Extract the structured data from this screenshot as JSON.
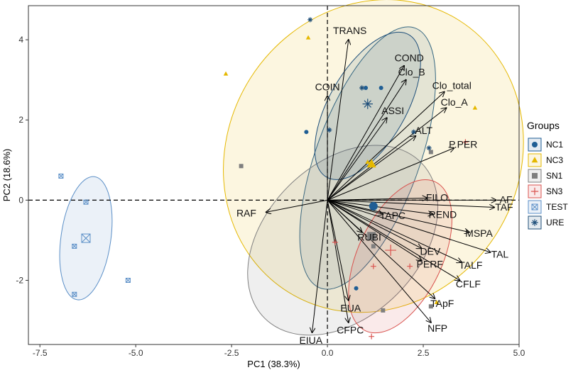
{
  "chart_data": {
    "type": "scatter",
    "subtype": "pca-biplot",
    "title": "",
    "xlabel": "PC1 (38.3%)",
    "ylabel": "PC2 (18.6%)",
    "xlim": [
      -7.8,
      5.0
    ],
    "ylim": [
      -3.6,
      4.85
    ],
    "x_ticks": [
      -7.5,
      -5.0,
      -2.5,
      0.0,
      2.5,
      5.0
    ],
    "x_tick_labels": [
      "-7.5",
      "-5.0",
      "-2.5",
      "0.0",
      "2.5",
      "5.0"
    ],
    "y_ticks": [
      -2,
      0,
      2,
      4
    ],
    "y_tick_labels": [
      "-2",
      "0",
      "2",
      "4"
    ],
    "grid": false,
    "reference_lines": {
      "x": 0,
      "y": 0,
      "style": "dashed"
    },
    "legend": {
      "title": "Groups",
      "position": "right",
      "entries": [
        {
          "name": "NC1",
          "color": "#1f5e94",
          "shape": "circle"
        },
        {
          "name": "NC3",
          "color": "#e5b800",
          "shape": "triangle"
        },
        {
          "name": "SN1",
          "color": "#7f7f7f",
          "shape": "square"
        },
        {
          "name": "SN3",
          "color": "#d9534f",
          "shape": "plus"
        },
        {
          "name": "TEST",
          "color": "#5b8fc7",
          "shape": "square-cross"
        },
        {
          "name": "URE",
          "color": "#1f4f7a",
          "shape": "asterisk"
        }
      ]
    },
    "variables": [
      {
        "name": "TRANS",
        "x": 0.55,
        "y": 4.0
      },
      {
        "name": "COND",
        "x": 2.0,
        "y": 3.35
      },
      {
        "name": "COIN",
        "x": 0.0,
        "y": 2.6
      },
      {
        "name": "Clo_B",
        "x": 2.05,
        "y": 3.0
      },
      {
        "name": "Clo_total",
        "x": 3.05,
        "y": 2.7
      },
      {
        "name": "ASSI",
        "x": 1.55,
        "y": 2.05
      },
      {
        "name": "Clo_A",
        "x": 3.1,
        "y": 2.3
      },
      {
        "name": "ALT",
        "x": 2.3,
        "y": 1.6
      },
      {
        "name": "P.PER",
        "x": 3.3,
        "y": 1.3
      },
      {
        "name": "FILO",
        "x": 2.6,
        "y": 0.05
      },
      {
        "name": "AF",
        "x": 4.4,
        "y": 0.0
      },
      {
        "name": "TAF",
        "x": 4.35,
        "y": -0.18
      },
      {
        "name": "REND",
        "x": 2.75,
        "y": -0.35
      },
      {
        "name": "TAPC",
        "x": 1.45,
        "y": -0.35
      },
      {
        "name": "MSPA",
        "x": 3.7,
        "y": -0.8
      },
      {
        "name": "RUBI",
        "x": 0.9,
        "y": -0.8
      },
      {
        "name": "TAL",
        "x": 4.25,
        "y": -1.3
      },
      {
        "name": "DEV",
        "x": 2.45,
        "y": -1.2
      },
      {
        "name": "TALF",
        "x": 3.5,
        "y": -1.55
      },
      {
        "name": "PERF",
        "x": 2.45,
        "y": -1.5
      },
      {
        "name": "CFLF",
        "x": 3.45,
        "y": -2.0
      },
      {
        "name": "TApF",
        "x": 2.8,
        "y": -2.45
      },
      {
        "name": "EUA",
        "x": 0.55,
        "y": -2.5
      },
      {
        "name": "NFP",
        "x": 2.7,
        "y": -3.05
      },
      {
        "name": "CFPC",
        "x": 0.55,
        "y": -3.05
      },
      {
        "name": "EIUA",
        "x": -0.4,
        "y": -3.3
      },
      {
        "name": "RAF",
        "x": -1.6,
        "y": -0.3
      }
    ],
    "groups": [
      {
        "name": "NC1",
        "points": [
          [
            -0.55,
            1.7
          ],
          [
            1.0,
            2.8
          ],
          [
            1.4,
            2.8
          ],
          [
            1.15,
            0.9
          ],
          [
            0.75,
            -2.2
          ]
        ],
        "centroid": [
          1.2,
          -0.15
        ],
        "ellipse": {
          "cx": 1.05,
          "cy": 1.05,
          "rx": 1.35,
          "ry": 3.45,
          "angle_deg": 20
        }
      },
      {
        "name": "NC3",
        "points": [
          [
            -2.65,
            3.15
          ],
          [
            -0.5,
            4.05
          ],
          [
            1.05,
            0.95
          ],
          [
            3.85,
            2.3
          ],
          [
            2.85,
            -2.55
          ]
        ],
        "centroid": [
          1.15,
          0.9
        ],
        "ellipse": {
          "cx": 1.2,
          "cy": 1.1,
          "rx": 3.8,
          "ry": 4.0,
          "angle_deg": 32
        }
      },
      {
        "name": "SN1",
        "points": [
          [
            -2.25,
            0.85
          ],
          [
            1.2,
            -0.95
          ],
          [
            1.2,
            -1.15
          ],
          [
            1.45,
            -2.75
          ],
          [
            2.7,
            -2.65
          ],
          [
            2.7,
            1.2
          ]
        ],
        "centroid": [
          1.15,
          -0.9
        ],
        "ellipse": {
          "cx": 0.4,
          "cy": -1.0,
          "rx": 2.0,
          "ry": 2.75,
          "angle_deg": 45
        }
      },
      {
        "name": "SN3",
        "points": [
          [
            0.2,
            -1.05
          ],
          [
            1.2,
            -1.65
          ],
          [
            2.15,
            -1.65
          ],
          [
            1.15,
            -3.4
          ],
          [
            3.6,
            1.45
          ]
        ],
        "centroid": [
          1.65,
          -1.25
        ],
        "ellipse": {
          "cx": 1.9,
          "cy": -1.4,
          "rx": 1.1,
          "ry": 2.05,
          "angle_deg": 25
        }
      },
      {
        "name": "TEST",
        "points": [
          [
            -6.95,
            0.6
          ],
          [
            -6.3,
            -0.05
          ],
          [
            -6.6,
            -1.15
          ],
          [
            -6.6,
            -2.35
          ],
          [
            -5.2,
            -2.0
          ]
        ],
        "centroid": [
          -6.3,
          -0.95
        ],
        "ellipse": {
          "cx": -6.3,
          "cy": -0.95,
          "rx": 0.65,
          "ry": 1.55,
          "angle_deg": 8
        }
      },
      {
        "name": "URE",
        "points": [
          [
            -0.45,
            4.5
          ],
          [
            0.05,
            1.75
          ],
          [
            0.9,
            2.8
          ],
          [
            2.65,
            1.3
          ],
          [
            2.25,
            1.7
          ]
        ],
        "centroid": [
          1.05,
          2.4
        ],
        "ellipse": {
          "cx": 1.05,
          "cy": 2.35,
          "rx": 1.0,
          "ry": 2.05,
          "angle_deg": 30
        }
      }
    ]
  }
}
